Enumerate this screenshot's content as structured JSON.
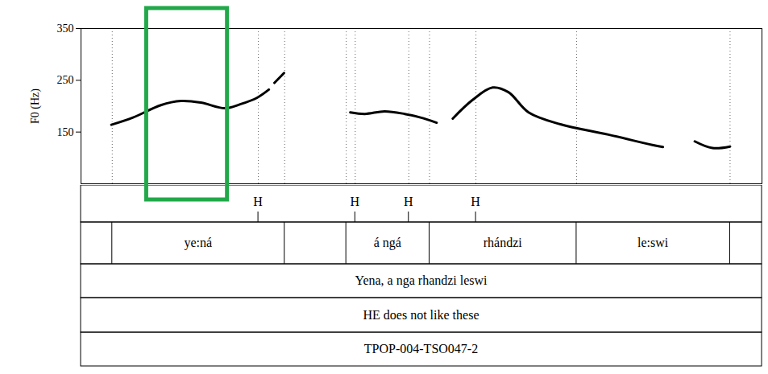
{
  "chart_data": {
    "type": "line",
    "ylabel": "F0 (Hz)",
    "ylim": [
      50,
      350
    ],
    "yticks": [
      150,
      250,
      350
    ],
    "xlim": [
      0,
      2.2
    ],
    "tick_labels": "y",
    "color": "#000000",
    "x": [
      0.098,
      0.168,
      0.258,
      0.323,
      0.387,
      0.465,
      0.516,
      0.568,
      0.607,
      0.615,
      0.625,
      0.656,
      0.76,
      0.87,
      0.917,
      0.981,
      1.046,
      1.097,
      1.149,
      1.175,
      1.201,
      1.265,
      1.33,
      1.381,
      1.446,
      1.549,
      1.704,
      1.846,
      1.88,
      1.93,
      1.983,
      2.04,
      2.097
    ],
    "values": [
      164,
      178,
      202,
      210,
      207,
      196,
      204,
      216,
      232,
      null,
      245,
      264,
      null,
      188,
      185,
      190,
      185,
      178,
      168,
      null,
      176,
      212,
      236,
      227,
      188,
      165,
      145,
      125,
      121,
      null,
      132,
      119,
      122
    ],
    "highlight": {
      "start": 0.212,
      "end": 0.473,
      "color": "#22a84a"
    },
    "tones": [
      {
        "time": 0.573,
        "label": "H"
      },
      {
        "time": 0.886,
        "label": "H"
      },
      {
        "time": 1.059,
        "label": "H"
      },
      {
        "time": 1.276,
        "label": "H"
      }
    ],
    "words": [
      {
        "start": 0.101,
        "end": 0.658,
        "label": "ye:ná"
      },
      {
        "start": 0.857,
        "end": 1.126,
        "label": "á ngá"
      },
      {
        "start": 1.126,
        "end": 1.601,
        "label": "rhándzi"
      },
      {
        "start": 1.601,
        "end": 2.097,
        "label": "le:swi"
      }
    ],
    "transcription": "Yena, a nga rhandzi leswi",
    "translation": "HE does not like these",
    "file_id": "TPOP-004-TSO047-2"
  }
}
